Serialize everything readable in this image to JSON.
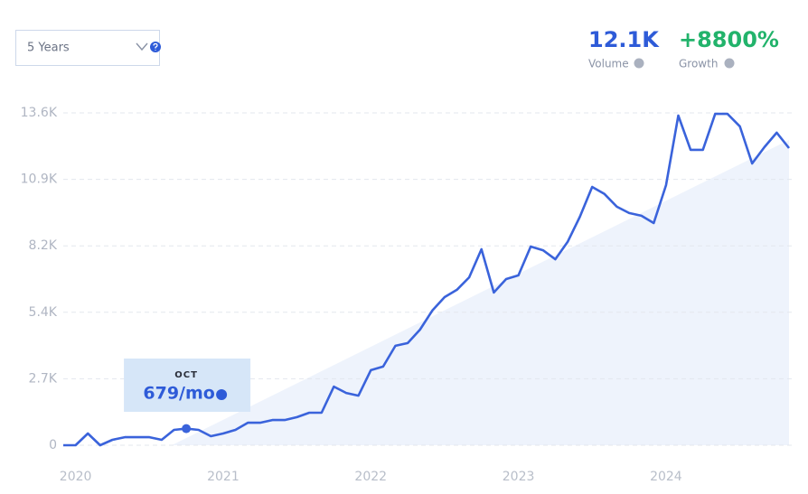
{
  "controls": {
    "range": "5 Years"
  },
  "stats": [
    {
      "value": "12.1K",
      "label": "Volume"
    },
    {
      "value": "+8800%",
      "label": "Growth"
    }
  ],
  "chart_data": {
    "type": "line",
    "categories": [
      null,
      "2020",
      null,
      null,
      null,
      null,
      null,
      null,
      null,
      null,
      null,
      null,
      null,
      "2021",
      null,
      null,
      null,
      null,
      null,
      null,
      null,
      null,
      null,
      null,
      null,
      "2022",
      null,
      null,
      null,
      null,
      null,
      null,
      null,
      null,
      null,
      null,
      null,
      "2023",
      null,
      null,
      null,
      null,
      null,
      null,
      null,
      null,
      null,
      null,
      null,
      "2024",
      null,
      null,
      null,
      null,
      null,
      null,
      null,
      null,
      null,
      null
    ],
    "values": [
      0,
      0,
      480,
      0,
      220,
      330,
      330,
      330,
      220,
      630,
      679,
      630,
      370,
      480,
      630,
      920,
      920,
      1030,
      1030,
      1150,
      1330,
      1330,
      2400,
      2140,
      2030,
      3070,
      3220,
      4070,
      4180,
      4730,
      5510,
      6060,
      6360,
      6870,
      8020,
      6250,
      6800,
      6950,
      8130,
      7980,
      7610,
      8320,
      9350,
      10570,
      10280,
      9760,
      9500,
      9390,
      9090,
      10640,
      13490,
      12090,
      12090,
      13560,
      13560,
      13050,
      11530,
      12200,
      12790,
      12160
    ],
    "value_labels": [
      null,
      null,
      null,
      null,
      null,
      null,
      null,
      null,
      null,
      null,
      "679/mo",
      null,
      null,
      null,
      null,
      null,
      null,
      null,
      null,
      null,
      null,
      null,
      null,
      null,
      null,
      null,
      null,
      null,
      null,
      null,
      null,
      null,
      null,
      null,
      null,
      null,
      null,
      null,
      null,
      null,
      null,
      null,
      null,
      null,
      null,
      null,
      null,
      null,
      null,
      null,
      null,
      null,
      null,
      null,
      null,
      null,
      null,
      null,
      null,
      null
    ],
    "tooltip_title": "OCT",
    "color": "#3a63db",
    "ylim": [
      0,
      13600
    ],
    "yticks": [
      0,
      {
        "value": 2720,
        "label": "2.7K"
      },
      {
        "value": 5440,
        "label": "5.4K"
      },
      {
        "value": 8160,
        "label": "8.2K"
      },
      {
        "value": 10880,
        "label": "10.9K"
      },
      {
        "value": 13600,
        "label": "13.6K"
      }
    ],
    "grid": true
  }
}
